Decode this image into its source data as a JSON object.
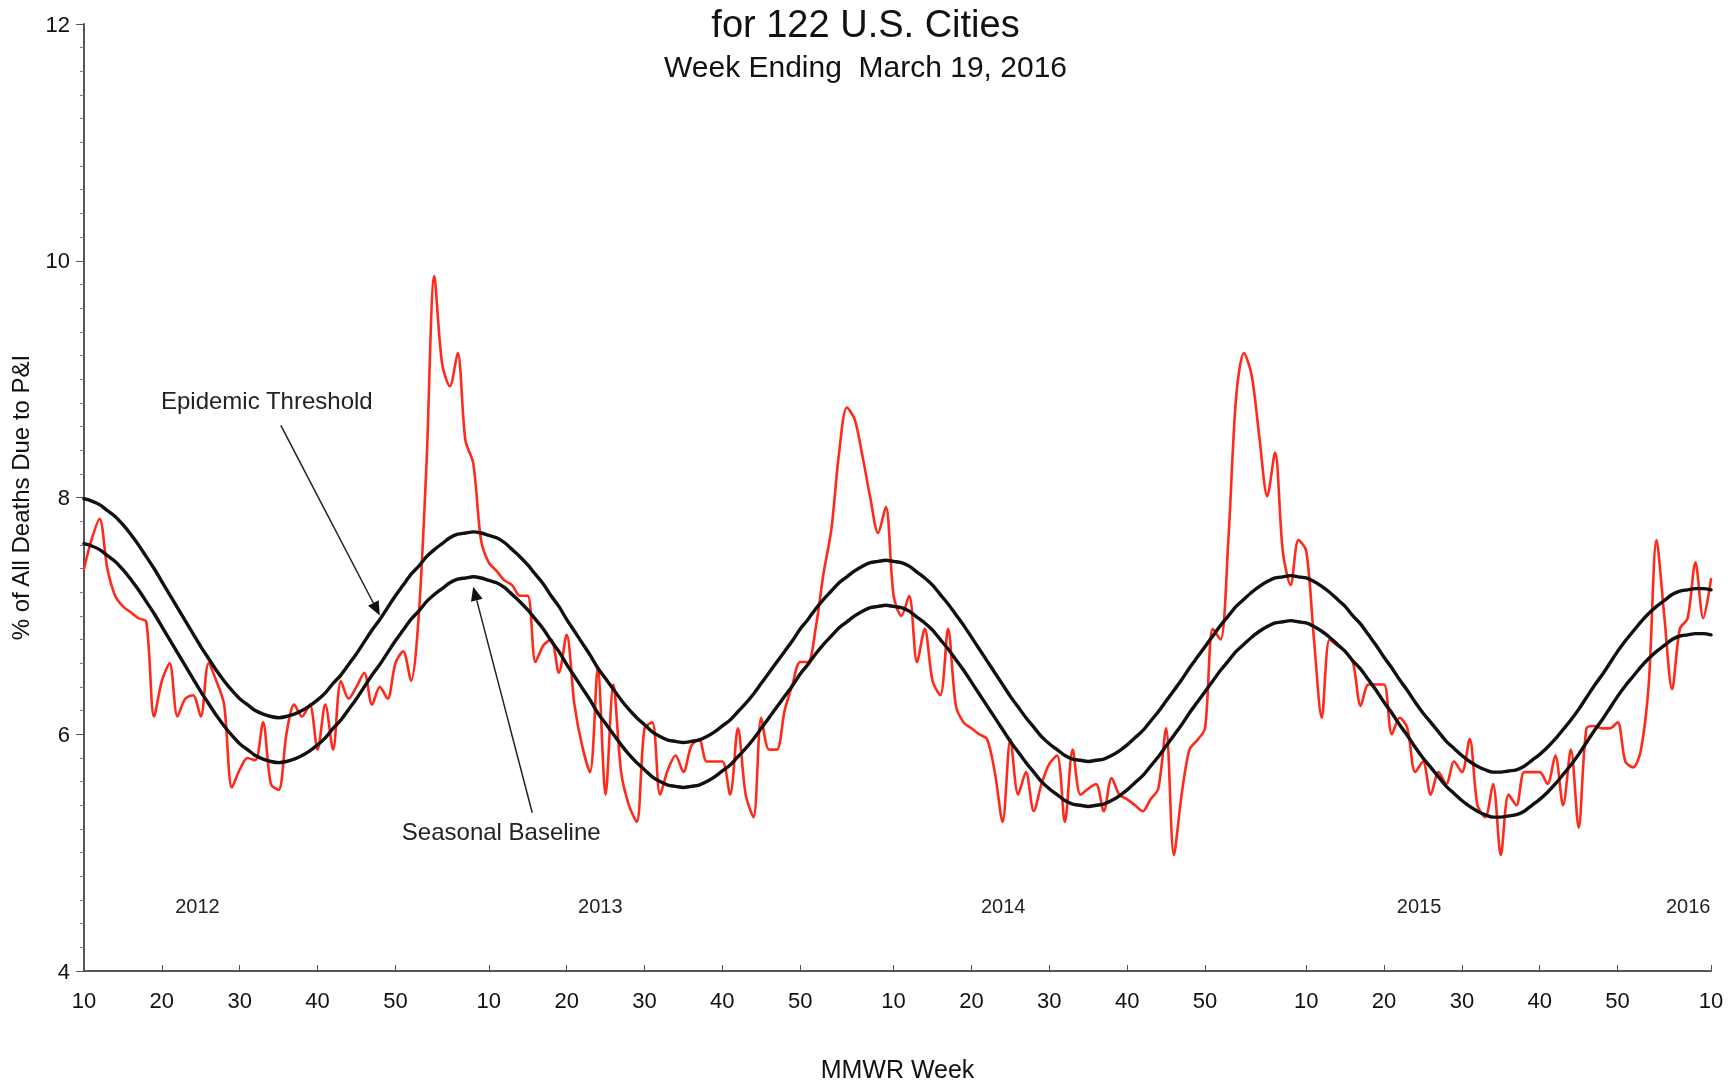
{
  "chart_data": {
    "type": "line",
    "title": "for 122 U.S. Cities",
    "subtitle": "Week Ending  March 19, 2016",
    "xlabel": "MMWR Week",
    "ylabel": "% of All Deaths Due to P&I",
    "categories": [
      "10",
      null,
      null,
      null,
      null,
      null,
      null,
      null,
      null,
      null,
      "20",
      null,
      null,
      null,
      null,
      null,
      null,
      null,
      null,
      null,
      "30",
      null,
      null,
      null,
      null,
      null,
      null,
      null,
      null,
      null,
      "40",
      null,
      null,
      null,
      null,
      null,
      null,
      null,
      null,
      null,
      "50",
      null,
      null,
      null,
      null,
      null,
      null,
      null,
      null,
      null,
      null,
      null,
      "10",
      null,
      null,
      null,
      null,
      null,
      null,
      null,
      null,
      null,
      "20",
      null,
      null,
      null,
      null,
      null,
      null,
      null,
      null,
      null,
      "30",
      null,
      null,
      null,
      null,
      null,
      null,
      null,
      null,
      null,
      "40",
      null,
      null,
      null,
      null,
      null,
      null,
      null,
      null,
      null,
      "50",
      null,
      null,
      null,
      null,
      null,
      null,
      null,
      null,
      null,
      null,
      null,
      "10",
      null,
      null,
      null,
      null,
      null,
      null,
      null,
      null,
      null,
      "20",
      null,
      null,
      null,
      null,
      null,
      null,
      null,
      null,
      null,
      "30",
      null,
      null,
      null,
      null,
      null,
      null,
      null,
      null,
      null,
      "40",
      null,
      null,
      null,
      null,
      null,
      null,
      null,
      null,
      null,
      "50",
      null,
      null,
      null,
      null,
      null,
      null,
      null,
      null,
      null,
      null,
      null,
      null,
      "10",
      null,
      null,
      null,
      null,
      null,
      null,
      null,
      null,
      null,
      "20",
      null,
      null,
      null,
      null,
      null,
      null,
      null,
      null,
      null,
      "30",
      null,
      null,
      null,
      null,
      null,
      null,
      null,
      null,
      null,
      "40",
      null,
      null,
      null,
      null,
      null,
      null,
      null,
      null,
      null,
      "50",
      null,
      null,
      null,
      null,
      null,
      null,
      null,
      null,
      null,
      null,
      null,
      "10"
    ],
    "ylim": [
      4,
      12
    ],
    "yticks": [
      4,
      6,
      8,
      10,
      12
    ],
    "grid": false,
    "marker": "none",
    "line_style": "solid",
    "annotations": [
      "Epidemic Threshold",
      "Seasonal Baseline",
      "2012",
      "2013",
      "2014",
      "2015",
      "2016"
    ],
    "series": [
      {
        "color": "#ff2a1a",
        "values": [
          7.4,
          7.65,
          7.82,
          7.4,
          7.17,
          7.08,
          7.03,
          6.98,
          6.95,
          6.15,
          6.45,
          6.6,
          6.15,
          6.3,
          6.33,
          6.15,
          6.6,
          6.45,
          6.25,
          5.55,
          5.7,
          5.8,
          5.78,
          6.1,
          5.58,
          5.53,
          6.0,
          6.25,
          6.15,
          6.25,
          5.87,
          6.25,
          5.87,
          6.45,
          6.3,
          6.4,
          6.52,
          6.25,
          6.4,
          6.3,
          6.6,
          6.7,
          6.45,
          7.0,
          8.29,
          9.87,
          9.13,
          8.94,
          9.22,
          8.48,
          8.29,
          7.64,
          7.45,
          7.38,
          7.3,
          7.26,
          7.17,
          7.17,
          6.61,
          6.75,
          6.8,
          6.52,
          6.84,
          6.25,
          5.9,
          5.68,
          6.56,
          5.49,
          6.42,
          5.68,
          5.4,
          5.26,
          6.05,
          6.1,
          5.49,
          5.7,
          5.82,
          5.68,
          5.9,
          5.96,
          5.77,
          5.77,
          5.77,
          5.49,
          6.05,
          5.49,
          5.3,
          6.14,
          5.87,
          5.87,
          6.2,
          6.42,
          6.61,
          6.61,
          6.9,
          7.36,
          7.73,
          8.38,
          8.76,
          8.66,
          8.35,
          8.0,
          7.7,
          7.92,
          7.17,
          7.0,
          7.17,
          6.61,
          6.89,
          6.45,
          6.33,
          6.89,
          6.24,
          6.1,
          6.05,
          6.0,
          5.96,
          5.68,
          5.26,
          5.96,
          5.49,
          5.68,
          5.35,
          5.58,
          5.75,
          5.82,
          5.26,
          5.87,
          5.49,
          5.54,
          5.58,
          5.35,
          5.63,
          5.49,
          5.45,
          5.4,
          5.35,
          5.45,
          5.54,
          6.05,
          4.98,
          5.49,
          5.87,
          5.95,
          6.05,
          6.89,
          6.8,
          7.64,
          8.85,
          9.22,
          9.03,
          8.5,
          8.01,
          8.38,
          7.54,
          7.26,
          7.64,
          7.55,
          6.8,
          6.14,
          6.8,
          6.75,
          6.7,
          6.61,
          6.24,
          6.42,
          6.42,
          6.42,
          6.0,
          6.14,
          6.05,
          5.68,
          5.77,
          5.49,
          5.68,
          5.58,
          5.77,
          5.68,
          5.96,
          5.4,
          5.3,
          5.58,
          4.98,
          5.49,
          5.4,
          5.68,
          5.68,
          5.68,
          5.58,
          5.82,
          5.4,
          5.87,
          5.21,
          6.05,
          6.07,
          6.05,
          6.05,
          6.1,
          5.77,
          5.72,
          5.87,
          6.42,
          7.64,
          7.0,
          6.38,
          6.89,
          6.98,
          7.45,
          6.98,
          7.31
        ]
      },
      {
        "color": "#111111",
        "values": [
          7.99,
          7.97,
          7.94,
          7.89,
          7.84,
          7.77,
          7.69,
          7.6,
          7.5,
          7.4,
          7.29,
          7.18,
          7.07,
          6.96,
          6.85,
          6.74,
          6.64,
          6.54,
          6.45,
          6.37,
          6.3,
          6.25,
          6.2,
          6.17,
          6.15,
          6.14,
          6.15,
          6.17,
          6.2,
          6.24,
          6.29,
          6.35,
          6.43,
          6.5,
          6.59,
          6.68,
          6.78,
          6.88,
          6.97,
          7.07,
          7.17,
          7.26,
          7.35,
          7.42,
          7.5,
          7.56,
          7.61,
          7.66,
          7.69,
          7.7,
          7.71,
          7.7,
          7.68,
          7.66,
          7.62,
          7.56,
          7.5,
          7.43,
          7.35,
          7.27,
          7.17,
          7.08,
          6.97,
          6.87,
          6.77,
          6.67,
          6.56,
          6.47,
          6.38,
          6.29,
          6.21,
          6.14,
          6.08,
          6.02,
          5.98,
          5.95,
          5.94,
          5.93,
          5.94,
          5.95,
          5.98,
          6.02,
          6.07,
          6.12,
          6.19,
          6.26,
          6.34,
          6.43,
          6.52,
          6.61,
          6.7,
          6.79,
          6.89,
          6.97,
          7.06,
          7.14,
          7.21,
          7.28,
          7.33,
          7.38,
          7.42,
          7.45,
          7.46,
          7.47,
          7.46,
          7.45,
          7.42,
          7.37,
          7.32,
          7.26,
          7.18,
          7.1,
          7.01,
          6.92,
          6.82,
          6.72,
          6.62,
          6.52,
          6.42,
          6.32,
          6.23,
          6.14,
          6.06,
          5.98,
          5.92,
          5.87,
          5.82,
          5.79,
          5.78,
          5.77,
          5.78,
          5.79,
          5.82,
          5.86,
          5.91,
          5.97,
          6.03,
          6.11,
          6.19,
          6.28,
          6.37,
          6.46,
          6.56,
          6.65,
          6.74,
          6.83,
          6.92,
          7.0,
          7.08,
          7.14,
          7.2,
          7.25,
          7.29,
          7.32,
          7.33,
          7.34,
          7.33,
          7.32,
          7.29,
          7.25,
          7.2,
          7.14,
          7.08,
          7.0,
          6.93,
          6.84,
          6.75,
          6.65,
          6.56,
          6.46,
          6.37,
          6.27,
          6.18,
          6.1,
          6.02,
          5.94,
          5.88,
          5.82,
          5.77,
          5.73,
          5.7,
          5.68,
          5.68,
          5.69,
          5.7,
          5.73,
          5.78,
          5.83,
          5.89,
          5.96,
          6.04,
          6.12,
          6.21,
          6.31,
          6.41,
          6.5,
          6.6,
          6.7,
          6.79,
          6.87,
          6.95,
          7.02,
          7.08,
          7.13,
          7.18,
          7.21,
          7.22,
          7.23,
          7.23,
          7.22
        ]
      },
      {
        "color": "#111111",
        "values": [
          7.61,
          7.59,
          7.56,
          7.51,
          7.46,
          7.39,
          7.31,
          7.22,
          7.12,
          7.02,
          6.91,
          6.8,
          6.69,
          6.58,
          6.47,
          6.36,
          6.26,
          6.16,
          6.07,
          5.99,
          5.92,
          5.87,
          5.82,
          5.79,
          5.77,
          5.76,
          5.77,
          5.79,
          5.82,
          5.86,
          5.91,
          5.97,
          6.05,
          6.12,
          6.21,
          6.3,
          6.4,
          6.5,
          6.59,
          6.69,
          6.79,
          6.88,
          6.97,
          7.04,
          7.12,
          7.18,
          7.23,
          7.28,
          7.31,
          7.32,
          7.33,
          7.32,
          7.3,
          7.28,
          7.24,
          7.18,
          7.12,
          7.05,
          6.97,
          6.89,
          6.79,
          6.7,
          6.59,
          6.49,
          6.39,
          6.29,
          6.18,
          6.09,
          6.0,
          5.91,
          5.83,
          5.76,
          5.7,
          5.64,
          5.6,
          5.57,
          5.56,
          5.55,
          5.56,
          5.57,
          5.6,
          5.64,
          5.69,
          5.74,
          5.81,
          5.88,
          5.96,
          6.05,
          6.14,
          6.23,
          6.32,
          6.41,
          6.51,
          6.59,
          6.68,
          6.76,
          6.83,
          6.9,
          6.95,
          7.0,
          7.04,
          7.07,
          7.08,
          7.09,
          7.08,
          7.07,
          7.04,
          6.99,
          6.94,
          6.88,
          6.8,
          6.72,
          6.63,
          6.54,
          6.44,
          6.34,
          6.24,
          6.14,
          6.04,
          5.94,
          5.85,
          5.76,
          5.68,
          5.6,
          5.54,
          5.49,
          5.44,
          5.41,
          5.4,
          5.39,
          5.4,
          5.41,
          5.44,
          5.48,
          5.53,
          5.59,
          5.65,
          5.73,
          5.81,
          5.9,
          5.99,
          6.08,
          6.18,
          6.27,
          6.36,
          6.45,
          6.54,
          6.62,
          6.7,
          6.76,
          6.82,
          6.87,
          6.91,
          6.94,
          6.95,
          6.96,
          6.95,
          6.94,
          6.91,
          6.87,
          6.82,
          6.76,
          6.7,
          6.62,
          6.55,
          6.46,
          6.37,
          6.27,
          6.18,
          6.08,
          5.99,
          5.89,
          5.8,
          5.72,
          5.64,
          5.56,
          5.5,
          5.44,
          5.39,
          5.35,
          5.32,
          5.3,
          5.3,
          5.31,
          5.32,
          5.35,
          5.4,
          5.45,
          5.51,
          5.58,
          5.66,
          5.74,
          5.83,
          5.93,
          6.03,
          6.12,
          6.22,
          6.32,
          6.41,
          6.49,
          6.57,
          6.64,
          6.7,
          6.75,
          6.8,
          6.83,
          6.84,
          6.85,
          6.85,
          6.84
        ]
      }
    ]
  }
}
